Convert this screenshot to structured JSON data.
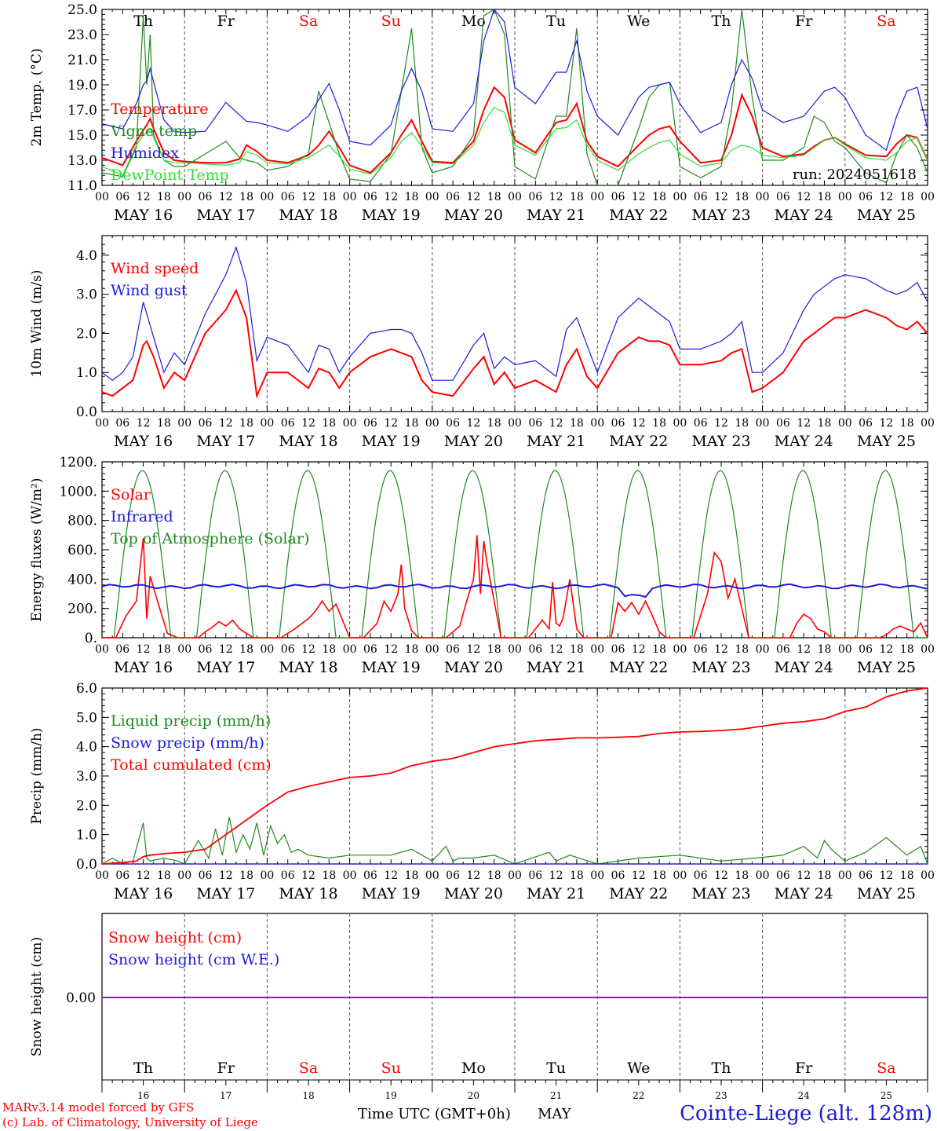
{
  "days": [
    "Th",
    "Fr",
    "Sa",
    "Su",
    "Mo",
    "Tu",
    "We",
    "Th",
    "Fr",
    "Sa"
  ],
  "weekend_days": [
    2,
    3,
    9
  ],
  "date_labels": [
    "MAY 16",
    "MAY 17",
    "MAY 18",
    "MAY 19",
    "MAY 20",
    "MAY 21",
    "MAY 22",
    "MAY 23",
    "MAY 24",
    "MAY 25"
  ],
  "hour_ticks": [
    "00",
    "06",
    "12",
    "18"
  ],
  "final_hour_tick": "00",
  "day_numbers": [
    "16",
    "17",
    "18",
    "19",
    "20",
    "21",
    "22",
    "23",
    "24",
    "25"
  ],
  "colors": {
    "red": "#ff0000",
    "green": "#1f8a1f",
    "blue": "#1a1adc",
    "lightgreen": "#33dd33",
    "purple": "#7a2aa0",
    "grid": "#555555"
  },
  "run_label": "run: 2024051618",
  "footer": {
    "model_line": "MARv3.14 model forced by GFS",
    "copyright_line": "(c) Lab. of Climatology, University of Liege",
    "time_label": "Time UTC (GMT+0h)",
    "month": "MAY",
    "station": "Cointe-Liege (alt. 128m)"
  },
  "chart_data": [
    {
      "type": "line",
      "ylabel": "2m Temp. (°C)",
      "ylim": [
        11.0,
        25.0
      ],
      "yticks": [
        "11.0",
        "13.0",
        "15.0",
        "17.0",
        "19.0",
        "21.0",
        "23.0",
        "25.0"
      ],
      "grid": "vertical day separators",
      "legend_position": "left",
      "x_hours": [
        0,
        6,
        10,
        12,
        13,
        14,
        15,
        18,
        21,
        24,
        30,
        36,
        40,
        42,
        45,
        48,
        54,
        60,
        63,
        66,
        69,
        72,
        78,
        84,
        87,
        90,
        93,
        96,
        102,
        108,
        111,
        114,
        117,
        120,
        126,
        132,
        135,
        138,
        141,
        144,
        150,
        156,
        159,
        162,
        165,
        168,
        174,
        180,
        183,
        186,
        189,
        192,
        198,
        204,
        207,
        210,
        213,
        216,
        222,
        228,
        231,
        234,
        237,
        240
      ],
      "series": [
        {
          "name": "Temperature",
          "color": "red",
          "values": [
            13.2,
            12.6,
            14.5,
            15.4,
            15.8,
            16.3,
            15.5,
            13.6,
            13.0,
            12.9,
            12.8,
            12.8,
            13.1,
            14.2,
            13.7,
            13.0,
            12.8,
            13.4,
            14.2,
            15.3,
            14.0,
            12.6,
            12.0,
            13.6,
            15.0,
            16.2,
            14.5,
            12.9,
            12.8,
            14.5,
            17.0,
            18.8,
            18.0,
            14.6,
            13.6,
            16.0,
            16.2,
            17.5,
            14.5,
            13.3,
            12.5,
            14.2,
            15.0,
            15.5,
            15.7,
            14.5,
            12.8,
            13.0,
            15.0,
            18.2,
            16.5,
            14.0,
            13.3,
            13.5,
            14.1,
            14.6,
            14.8,
            14.3,
            13.4,
            13.3,
            14.3,
            15.0,
            14.8,
            13.0
          ]
        },
        {
          "name": "Vigne temp",
          "color": "green",
          "values": [
            12.0,
            11.7,
            14.0,
            24.5,
            19.0,
            23.0,
            15.0,
            13.0,
            12.5,
            12.5,
            13.5,
            14.5,
            13.2,
            13.0,
            12.8,
            12.2,
            12.5,
            13.5,
            18.5,
            16.0,
            13.5,
            11.5,
            11.3,
            13.5,
            18.5,
            23.5,
            14.0,
            12.0,
            12.5,
            15.0,
            24.5,
            25.0,
            23.0,
            12.5,
            11.5,
            16.5,
            16.5,
            23.5,
            13.5,
            11.0,
            11.0,
            15.5,
            18.0,
            19.0,
            19.2,
            12.5,
            11.6,
            12.5,
            17.0,
            25.0,
            18.0,
            13.0,
            13.0,
            14.0,
            16.5,
            16.0,
            14.5,
            14.0,
            12.0,
            11.2,
            13.5,
            15.0,
            14.0,
            12.0
          ]
        },
        {
          "name": "Humidex",
          "color": "blue",
          "values": [
            15.9,
            15.5,
            17.5,
            19.0,
            19.3,
            20.3,
            19.2,
            16.2,
            15.3,
            15.2,
            15.3,
            17.6,
            16.6,
            16.1,
            16.0,
            15.8,
            15.3,
            16.5,
            17.8,
            19.1,
            17.0,
            14.5,
            14.2,
            15.8,
            18.5,
            20.3,
            18.5,
            15.5,
            15.3,
            17.5,
            22.5,
            25.0,
            24.0,
            18.8,
            17.5,
            20.0,
            20.0,
            22.5,
            18.5,
            16.5,
            15.0,
            18.0,
            18.8,
            19.0,
            19.2,
            17.5,
            15.2,
            16.0,
            19.0,
            21.0,
            19.5,
            17.0,
            16.0,
            16.5,
            17.5,
            18.5,
            18.8,
            18.0,
            15.0,
            13.8,
            16.5,
            18.5,
            18.8,
            15.5
          ]
        },
        {
          "name": "DewPoint Temp",
          "color": "lightgreen",
          "values": [
            12.5,
            11.8,
            14.2,
            15.0,
            15.2,
            15.5,
            14.8,
            13.0,
            12.8,
            12.8,
            12.7,
            12.6,
            12.8,
            13.7,
            13.4,
            12.8,
            12.7,
            13.2,
            13.7,
            14.2,
            13.3,
            12.3,
            11.9,
            13.2,
            14.5,
            15.2,
            14.1,
            12.8,
            12.7,
            14.2,
            16.0,
            17.2,
            16.8,
            14.2,
            13.4,
            15.5,
            15.6,
            16.2,
            14.2,
            13.0,
            12.2,
            13.5,
            14.0,
            14.4,
            14.6,
            13.5,
            12.5,
            12.8,
            13.8,
            14.2,
            14.0,
            13.4,
            13.2,
            13.4,
            14.0,
            14.6,
            14.8,
            14.2,
            13.2,
            13.0,
            13.6,
            14.5,
            14.8,
            13.0
          ]
        }
      ]
    },
    {
      "type": "line",
      "ylabel": "10m Wind (m/s)",
      "ylim": [
        0.0,
        4.5
      ],
      "yticks": [
        "0.0",
        "1.0",
        "2.0",
        "3.0",
        "4.0"
      ],
      "legend_position": "left",
      "x_hours": [
        0,
        3,
        6,
        9,
        12,
        13,
        15,
        18,
        21,
        24,
        30,
        36,
        39,
        42,
        45,
        48,
        54,
        60,
        63,
        66,
        69,
        72,
        78,
        84,
        87,
        90,
        93,
        96,
        102,
        108,
        111,
        114,
        117,
        120,
        126,
        132,
        135,
        138,
        141,
        144,
        150,
        156,
        159,
        162,
        165,
        168,
        174,
        180,
        183,
        186,
        189,
        192,
        198,
        204,
        207,
        210,
        213,
        216,
        222,
        228,
        231,
        234,
        237,
        240
      ],
      "series": [
        {
          "name": "Wind speed",
          "color": "red",
          "values": [
            0.5,
            0.4,
            0.6,
            0.8,
            1.7,
            1.8,
            1.4,
            0.6,
            1.0,
            0.8,
            2.0,
            2.6,
            3.1,
            2.4,
            0.4,
            1.0,
            1.0,
            0.6,
            1.1,
            1.0,
            0.6,
            1.0,
            1.4,
            1.6,
            1.5,
            1.4,
            0.8,
            0.5,
            0.4,
            1.1,
            1.4,
            0.7,
            1.0,
            0.6,
            0.8,
            0.5,
            1.2,
            1.6,
            0.9,
            0.6,
            1.5,
            1.9,
            1.8,
            1.8,
            1.7,
            1.2,
            1.2,
            1.3,
            1.5,
            1.6,
            0.5,
            0.6,
            1.0,
            1.8,
            2.0,
            2.2,
            2.4,
            2.4,
            2.6,
            2.4,
            2.2,
            2.1,
            2.3,
            2.0
          ]
        },
        {
          "name": "Wind gust",
          "color": "blue",
          "values": [
            1.0,
            0.8,
            1.0,
            1.4,
            2.8,
            2.5,
            1.9,
            1.0,
            1.5,
            1.2,
            2.5,
            3.5,
            4.2,
            3.3,
            1.3,
            1.9,
            1.7,
            1.0,
            1.7,
            1.6,
            1.0,
            1.4,
            2.0,
            2.1,
            2.1,
            2.0,
            1.5,
            0.8,
            0.8,
            1.7,
            2.0,
            1.1,
            1.4,
            1.2,
            1.3,
            0.9,
            2.1,
            2.4,
            1.7,
            1.0,
            2.4,
            2.9,
            2.7,
            2.5,
            2.3,
            1.6,
            1.6,
            1.8,
            2.0,
            2.3,
            1.0,
            1.0,
            1.5,
            2.6,
            3.0,
            3.2,
            3.4,
            3.5,
            3.4,
            3.1,
            3.0,
            3.1,
            3.3,
            2.8
          ]
        }
      ]
    },
    {
      "type": "line",
      "ylabel": "Energy fluxes (W/m²)",
      "ylim": [
        0,
        1200
      ],
      "yticks": [
        "0.",
        "200.",
        "400.",
        "600.",
        "800.",
        "1000.",
        "1200."
      ],
      "legend_position": "left",
      "toa_peak": 1140,
      "toa_window_hours": [
        3.5,
        20.0
      ],
      "solar_x_hours": [
        0,
        4,
        7,
        10,
        12,
        13,
        14,
        16,
        19,
        22,
        24,
        28,
        30,
        32,
        34,
        36,
        38,
        40,
        42,
        44,
        48,
        52,
        56,
        60,
        62,
        64,
        66,
        68,
        72,
        76,
        80,
        82,
        84,
        86,
        87,
        88,
        90,
        92,
        96,
        100,
        104,
        106,
        108,
        109,
        110,
        111,
        112,
        114,
        116,
        120,
        124,
        128,
        130,
        131,
        132,
        133,
        134,
        136,
        138,
        140,
        144,
        148,
        150,
        152,
        154,
        156,
        158,
        160,
        162,
        164,
        168,
        172,
        174,
        176,
        178,
        180,
        182,
        184,
        186,
        188,
        192,
        196,
        200,
        202,
        204,
        206,
        208,
        210,
        212,
        216,
        220,
        224,
        226,
        228,
        230,
        232,
        234,
        236,
        238,
        240
      ],
      "series": [
        {
          "name": "Solar",
          "color": "red",
          "values": [
            0,
            0,
            150,
            250,
            680,
            130,
            420,
            260,
            30,
            0,
            0,
            0,
            40,
            70,
            110,
            80,
            120,
            60,
            30,
            0,
            0,
            0,
            60,
            130,
            180,
            250,
            180,
            230,
            0,
            0,
            100,
            250,
            180,
            300,
            500,
            200,
            50,
            0,
            0,
            0,
            80,
            250,
            400,
            700,
            300,
            660,
            500,
            250,
            0,
            0,
            0,
            120,
            60,
            380,
            100,
            80,
            130,
            400,
            60,
            0,
            0,
            0,
            240,
            180,
            240,
            160,
            250,
            150,
            40,
            0,
            0,
            0,
            150,
            300,
            580,
            520,
            270,
            400,
            200,
            0,
            0,
            0,
            0,
            100,
            160,
            130,
            60,
            40,
            0,
            0,
            0,
            0,
            0,
            20,
            60,
            80,
            60,
            40,
            100,
            0
          ]
        },
        {
          "name": "Infrared",
          "color": "blue",
          "values_note": "near-constant",
          "level": 350
        }
      ]
    },
    {
      "type": "line",
      "ylabel": "Precip (mm/h)",
      "ylim": [
        0.0,
        6.0
      ],
      "yticks": [
        "0.0",
        "1.0",
        "2.0",
        "3.0",
        "4.0",
        "5.0",
        "6.0"
      ],
      "legend_position": "left",
      "series": [
        {
          "name": "Liquid precip (mm/h)",
          "color": "green",
          "x_hours": [
            0,
            3,
            6,
            9,
            12,
            13,
            14,
            18,
            22,
            24,
            28,
            31,
            33,
            35,
            37,
            39,
            41,
            43,
            45,
            47,
            49,
            51,
            53,
            55,
            57,
            60,
            66,
            72,
            84,
            90,
            96,
            100,
            102,
            104,
            108,
            114,
            120,
            130,
            132,
            136,
            144,
            156,
            168,
            174,
            180,
            190,
            198,
            204,
            208,
            210,
            212,
            216,
            222,
            228,
            234,
            238,
            240
          ],
          "values": [
            0.0,
            0.2,
            0.0,
            0.1,
            1.4,
            0.2,
            0.1,
            0.2,
            0.1,
            0.0,
            0.8,
            0.2,
            1.2,
            0.3,
            1.6,
            0.4,
            1.0,
            0.5,
            1.4,
            0.3,
            1.3,
            0.7,
            1.0,
            0.4,
            0.5,
            0.3,
            0.2,
            0.3,
            0.3,
            0.5,
            0.1,
            0.6,
            0.1,
            0.2,
            0.2,
            0.3,
            0.0,
            0.4,
            0.1,
            0.3,
            0.0,
            0.2,
            0.3,
            0.2,
            0.1,
            0.2,
            0.3,
            0.6,
            0.2,
            0.8,
            0.5,
            0.1,
            0.4,
            0.9,
            0.3,
            0.6,
            0.0
          ]
        },
        {
          "name": "Snow precip (mm/h)",
          "color": "blue",
          "x_hours": [
            0,
            240
          ],
          "values": [
            0.0,
            0.0
          ]
        },
        {
          "name": "Total cumulated (cm)",
          "color": "red",
          "x_hours": [
            0,
            6,
            10,
            12,
            14,
            18,
            24,
            30,
            36,
            42,
            48,
            54,
            60,
            66,
            72,
            78,
            84,
            90,
            96,
            102,
            108,
            114,
            120,
            126,
            132,
            138,
            144,
            150,
            156,
            162,
            168,
            174,
            180,
            186,
            192,
            198,
            204,
            210,
            216,
            222,
            228,
            234,
            240
          ],
          "values": [
            0.0,
            0.05,
            0.1,
            0.25,
            0.3,
            0.35,
            0.4,
            0.5,
            1.0,
            1.5,
            2.0,
            2.45,
            2.65,
            2.8,
            2.95,
            3.0,
            3.1,
            3.35,
            3.5,
            3.6,
            3.8,
            4.0,
            4.1,
            4.2,
            4.25,
            4.3,
            4.3,
            4.32,
            4.35,
            4.45,
            4.5,
            4.52,
            4.55,
            4.6,
            4.7,
            4.8,
            4.85,
            4.95,
            5.2,
            5.35,
            5.7,
            5.9,
            6.0
          ]
        }
      ]
    },
    {
      "type": "line",
      "ylabel": "Snow height (cm)",
      "yticks": [
        "0.00"
      ],
      "legend_position": "left",
      "series": [
        {
          "name": "Snow height (cm)",
          "color": "red",
          "x_hours": [
            0,
            240
          ],
          "values": [
            0.0,
            0.0
          ]
        },
        {
          "name": "Snow height (cm W.E.)",
          "color": "blue",
          "x_hours": [
            0,
            240
          ],
          "values": [
            0.0,
            0.0
          ]
        }
      ]
    }
  ]
}
